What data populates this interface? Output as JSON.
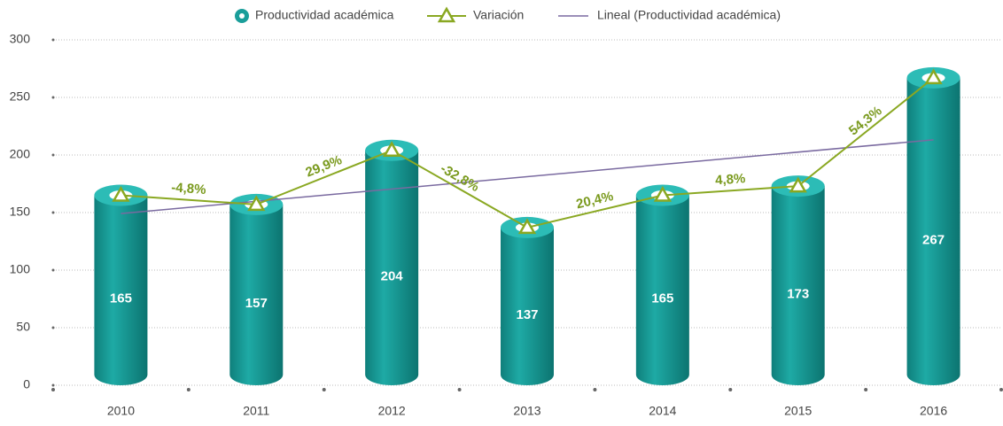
{
  "chart_data": {
    "type": "bar",
    "categories": [
      "2010",
      "2011",
      "2012",
      "2013",
      "2014",
      "2015",
      "2016"
    ],
    "series": [
      {
        "name": "Productividad académica",
        "color": "#1a9e9a",
        "values": [
          165,
          157,
          204,
          137,
          165,
          173,
          267
        ]
      },
      {
        "name": "Variación",
        "color": "#8aa822",
        "values": [
          null,
          -4.8,
          29.9,
          -32.8,
          20.4,
          4.8,
          54.3
        ],
        "value_labels": [
          null,
          "-4,8%",
          "29,9%",
          "-32,8%",
          "20,4%",
          "4,8%",
          "54,3%"
        ]
      }
    ],
    "trendline": {
      "name": "Lineal (Productividad académica)",
      "color": "#7a6aa0"
    },
    "ylim": [
      0,
      300
    ],
    "yticks": [
      0,
      50,
      100,
      150,
      200,
      250,
      300
    ],
    "grid": true
  }
}
